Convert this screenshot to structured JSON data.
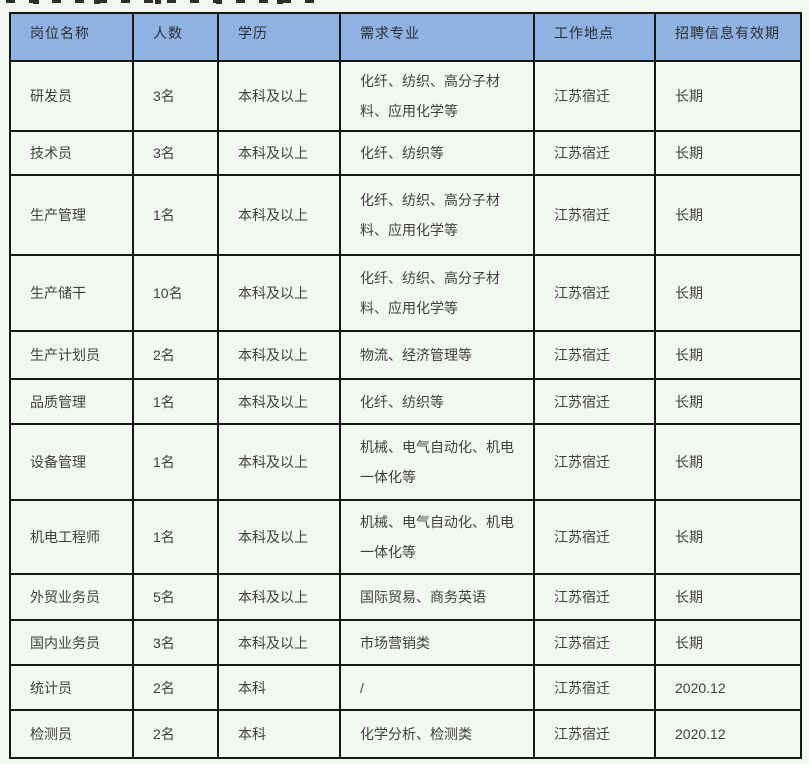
{
  "page": {
    "background_color": "#f2f7f0",
    "header_bg_color": "#8eb2e2",
    "border_color": "#161616"
  },
  "table": {
    "columns": [
      "岗位名称",
      "人数",
      "学历",
      "需求专业",
      "工作地点",
      "招聘信息有效期"
    ],
    "rows": [
      {
        "position": "研发员",
        "headcount": "3名",
        "education": "本科及以上",
        "majors": "化纤、纺织、高分子材料、应用化学等",
        "location": "江苏宿迁",
        "validity": "长期"
      },
      {
        "position": "技术员",
        "headcount": "3名",
        "education": "本科及以上",
        "majors": "化纤、纺织等",
        "location": "江苏宿迁",
        "validity": "长期"
      },
      {
        "position": "生产管理",
        "headcount": "1名",
        "education": "本科及以上",
        "majors": "化纤、纺织、高分子材料、应用化学等",
        "location": "江苏宿迁",
        "validity": "长期"
      },
      {
        "position": "生产储干",
        "headcount": "10名",
        "education": "本科及以上",
        "majors": "化纤、纺织、高分子材料、应用化学等",
        "location": "江苏宿迁",
        "validity": "长期"
      },
      {
        "position": "生产计划员",
        "headcount": "2名",
        "education": "本科及以上",
        "majors": "物流、经济管理等",
        "location": "江苏宿迁",
        "validity": "长期"
      },
      {
        "position": "品质管理",
        "headcount": "1名",
        "education": "本科及以上",
        "majors": "化纤、纺织等",
        "location": "江苏宿迁",
        "validity": "长期"
      },
      {
        "position": "设备管理",
        "headcount": "1名",
        "education": "本科及以上",
        "majors": "机械、电气自动化、机电一体化等",
        "location": "江苏宿迁",
        "validity": "长期"
      },
      {
        "position": "机电工程师",
        "headcount": "1名",
        "education": "本科及以上",
        "majors": "机械、电气自动化、机电一体化等",
        "location": "江苏宿迁",
        "validity": "长期"
      },
      {
        "position": "外贸业务员",
        "headcount": "5名",
        "education": "本科及以上",
        "majors": "国际贸易、商务英语",
        "location": "江苏宿迁",
        "validity": "长期"
      },
      {
        "position": "国内业务员",
        "headcount": "3名",
        "education": "本科及以上",
        "majors": "市场营销类",
        "location": "江苏宿迁",
        "validity": "长期"
      },
      {
        "position": "统计员",
        "headcount": "2名",
        "education": "本科",
        "majors": "/",
        "location": "江苏宿迁",
        "validity": "2020.12"
      },
      {
        "position": "检测员",
        "headcount": "2名",
        "education": "本科",
        "majors": "化学分析、检测类",
        "location": "江苏宿迁",
        "validity": "2020.12"
      }
    ]
  }
}
